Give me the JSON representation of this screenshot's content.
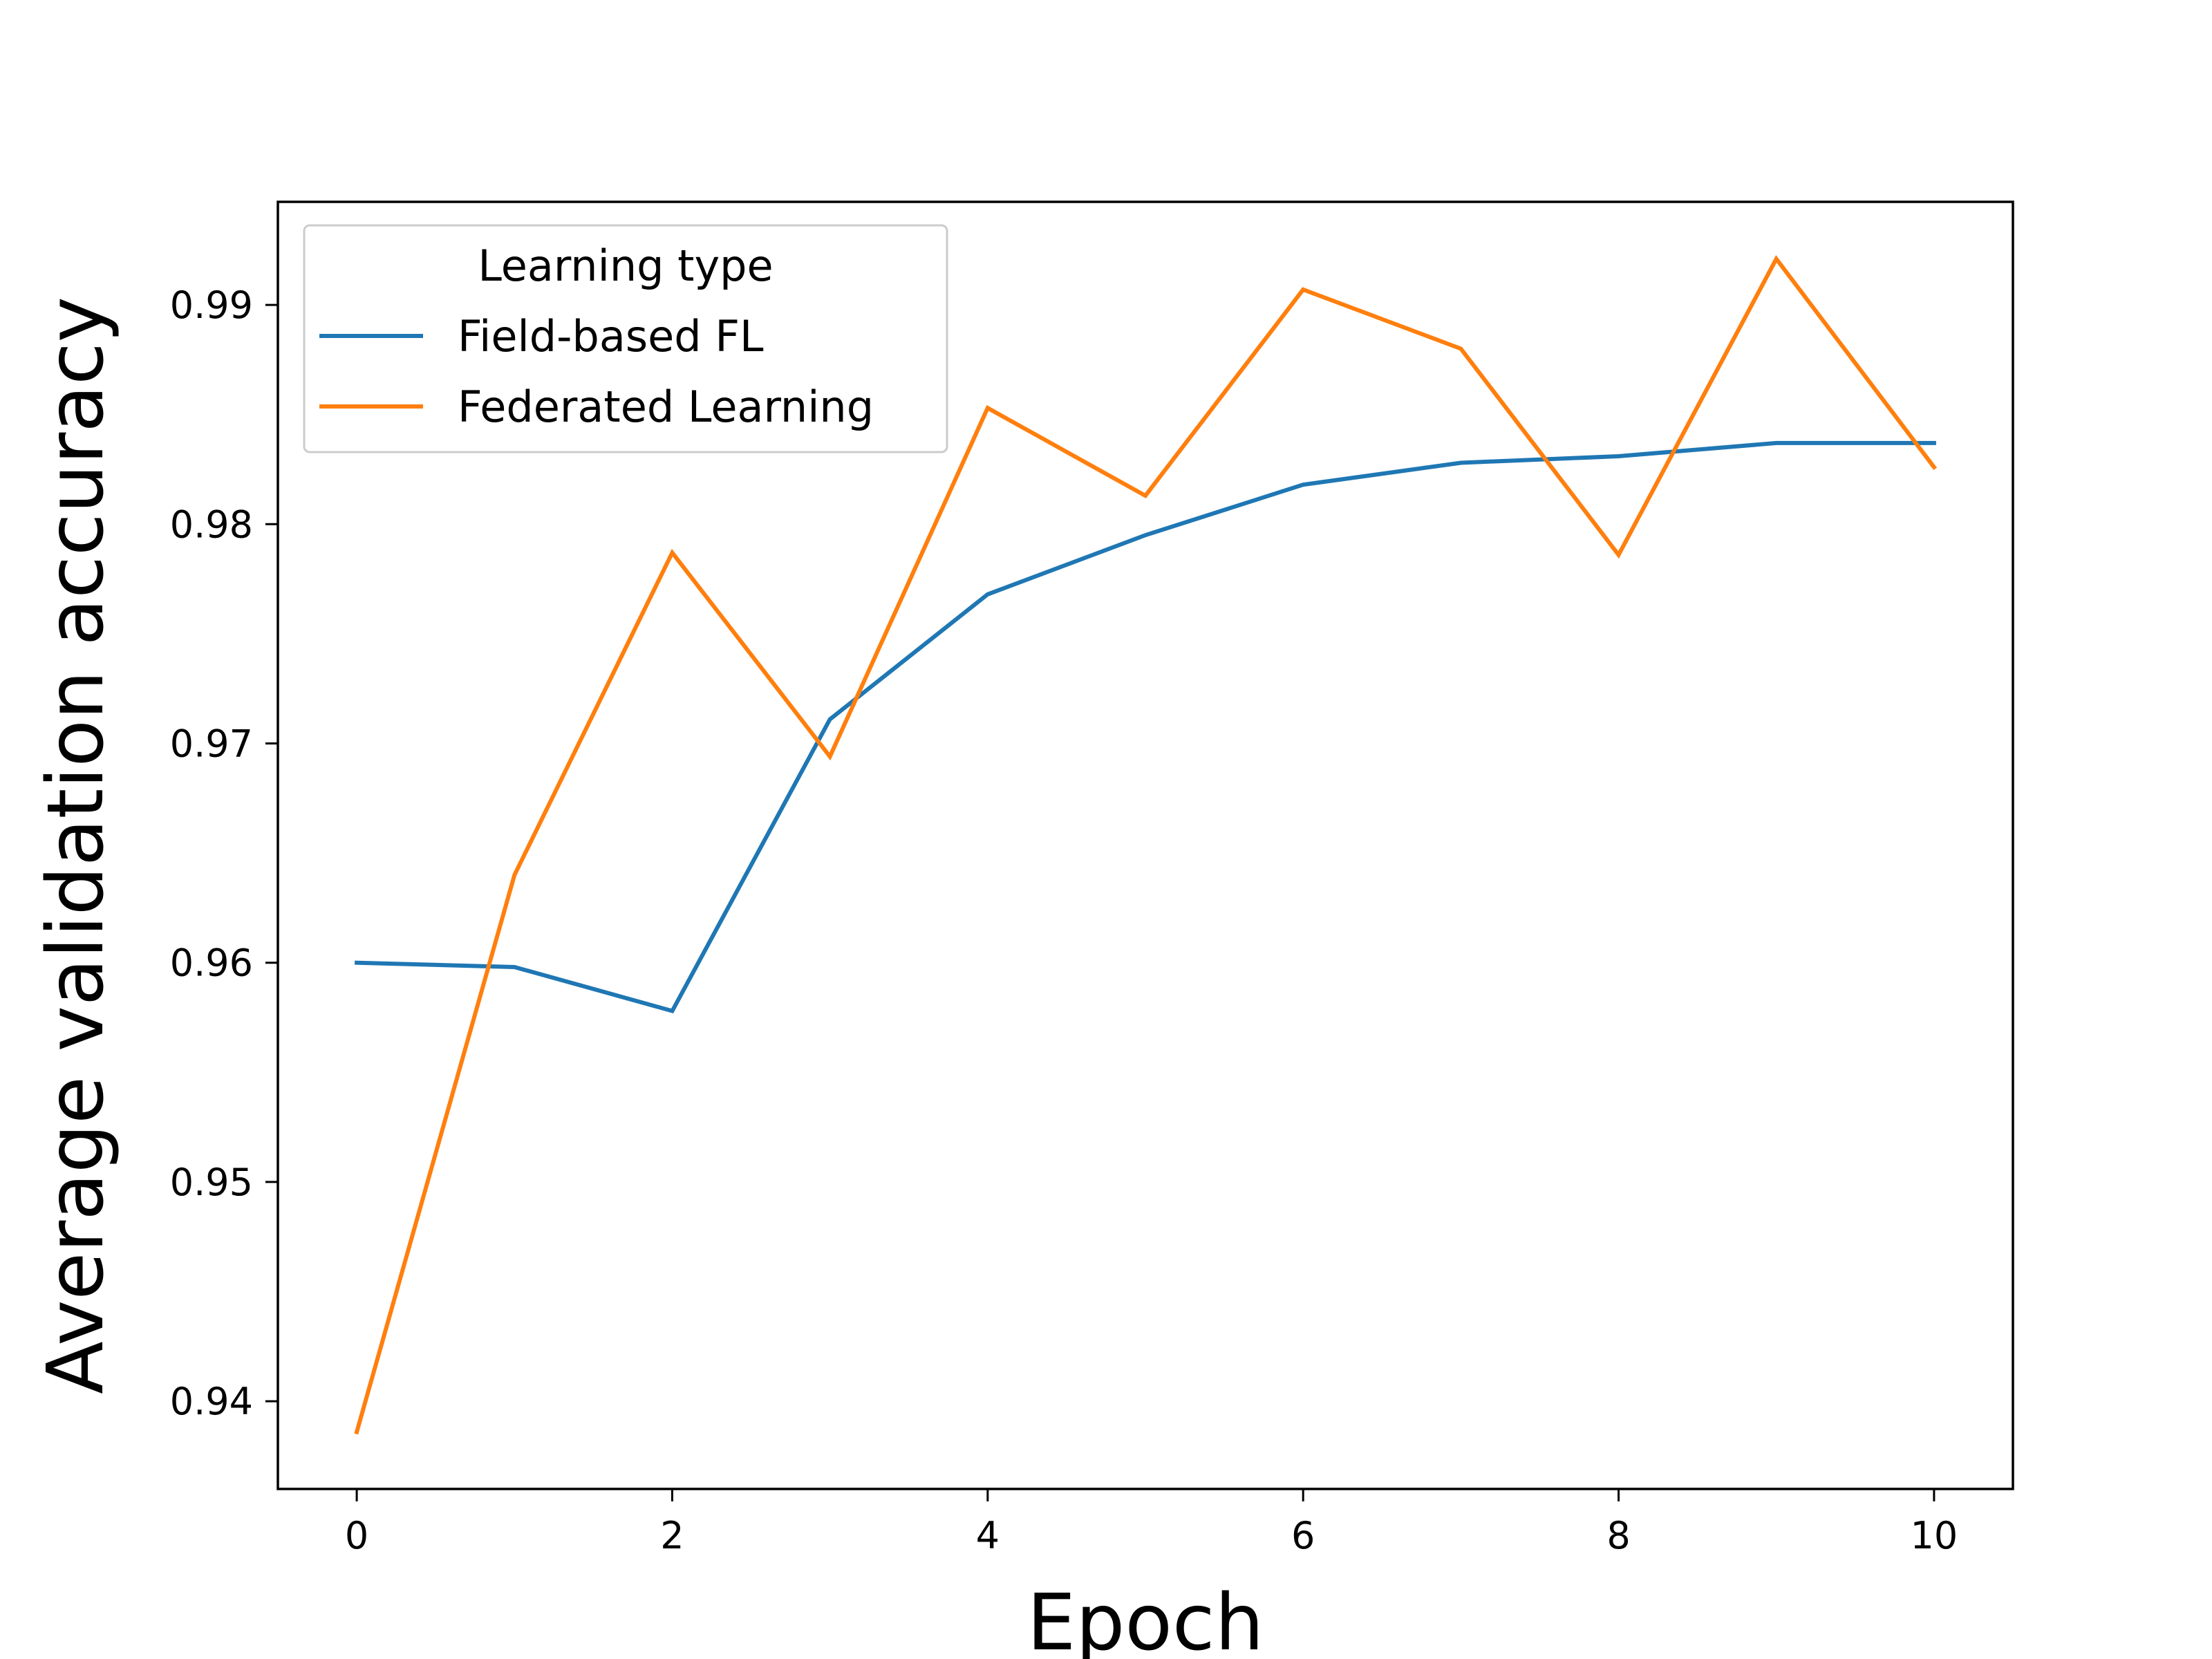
{
  "chart_data": {
    "type": "line",
    "title": "",
    "xlabel": "Epoch",
    "ylabel": "Average validation accuracy",
    "x": [
      0,
      1,
      2,
      3,
      4,
      5,
      6,
      7,
      8,
      9,
      10
    ],
    "xlim": [
      -0.5,
      10.5
    ],
    "ylim": [
      0.936,
      0.9947
    ],
    "x_ticks": [
      0,
      2,
      4,
      6,
      8,
      10
    ],
    "y_ticks": [
      0.94,
      0.95,
      0.96,
      0.97,
      0.98,
      0.99
    ],
    "x_tick_labels": [
      "0",
      "2",
      "4",
      "6",
      "8",
      "10"
    ],
    "y_tick_labels": [
      "0.94",
      "0.95",
      "0.96",
      "0.97",
      "0.98",
      "0.99"
    ],
    "grid": false,
    "legend": {
      "title": "Learning type",
      "placement": "upper-left"
    },
    "series": [
      {
        "name": "Field-based FL",
        "color": "#1f77b4",
        "values": [
          0.96,
          0.9598,
          0.9578,
          0.9711,
          0.9768,
          0.9795,
          0.9818,
          0.9828,
          0.9831,
          0.9837,
          0.9837
        ]
      },
      {
        "name": "Federated Learning",
        "color": "#ff7f0e",
        "values": [
          0.9386,
          0.964,
          0.9787,
          0.9694,
          0.9853,
          0.9813,
          0.9907,
          0.988,
          0.9786,
          0.9921,
          0.9826
        ]
      }
    ]
  }
}
